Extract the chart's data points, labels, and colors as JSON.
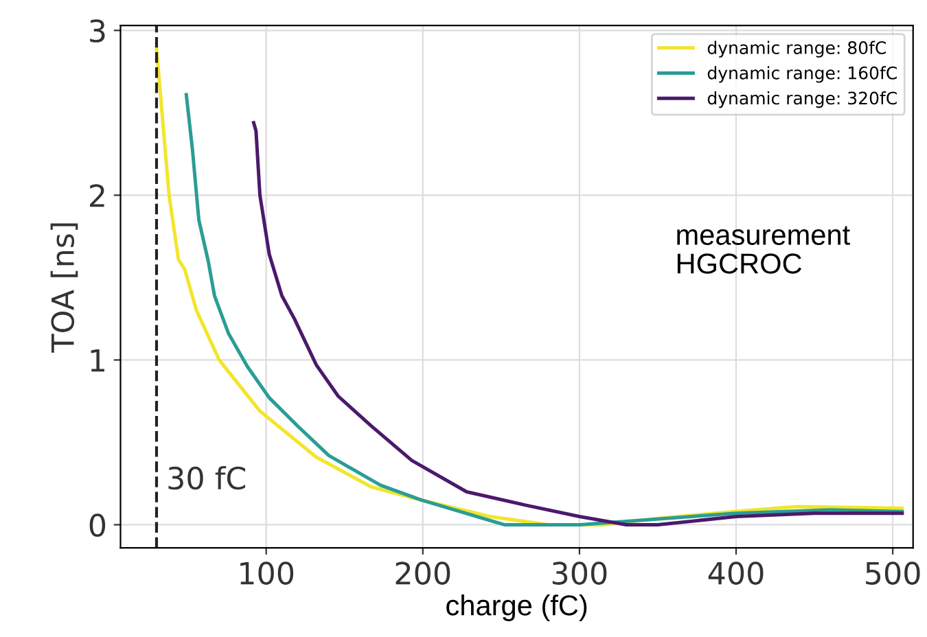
{
  "chart_data": {
    "type": "line",
    "xlabel": "charge (fC)",
    "ylabel": "TOA [ns]",
    "xlim": [
      7,
      513
    ],
    "ylim": [
      -0.14,
      3.03
    ],
    "xticks": [
      100,
      200,
      300,
      400,
      500
    ],
    "yticks": [
      0,
      1,
      2,
      3
    ],
    "grid": true,
    "legend": "top right",
    "line_style": "solid",
    "marker": "none",
    "ref_lines": [
      {
        "axis": "x",
        "value": 30,
        "label": "30 fC",
        "color": "#222222",
        "line_style": "dashed"
      }
    ],
    "annotations": [
      "measurement\nHGCROC"
    ],
    "series": [
      {
        "name": "dynamic range: 80fC",
        "color": "#f2e52c",
        "x": [
          30,
          38,
          44,
          48,
          55.5,
          70,
          96,
          132,
          167,
          199,
          243,
          280,
          316,
          351,
          399,
          439,
          506
        ],
        "values": [
          2.89,
          2.0,
          1.61,
          1.55,
          1.3,
          1.0,
          0.69,
          0.41,
          0.23,
          0.15,
          0.05,
          0.0,
          0.0,
          0.04,
          0.08,
          0.11,
          0.1
        ]
      },
      {
        "name": "dynamic range: 160fC",
        "color": "#2a9d96",
        "x": [
          49,
          53,
          57,
          63,
          67,
          76,
          88,
          102,
          120,
          140,
          173,
          199,
          252,
          300,
          400,
          460,
          506
        ],
        "values": [
          2.61,
          2.27,
          1.85,
          1.6,
          1.39,
          1.16,
          0.96,
          0.77,
          0.6,
          0.42,
          0.24,
          0.15,
          0.0,
          0.0,
          0.07,
          0.09,
          0.08
        ]
      },
      {
        "name": "dynamic range: 320fC",
        "color": "#4b1a6b",
        "x": [
          92,
          93.5,
          96,
          102,
          110,
          118,
          132,
          146,
          167,
          193,
          228,
          265,
          300,
          330,
          350,
          400,
          450,
          506
        ],
        "values": [
          2.44,
          2.39,
          2.0,
          1.64,
          1.39,
          1.25,
          0.97,
          0.78,
          0.6,
          0.39,
          0.2,
          0.12,
          0.05,
          0.0,
          0.0,
          0.05,
          0.07,
          0.07
        ]
      }
    ]
  }
}
